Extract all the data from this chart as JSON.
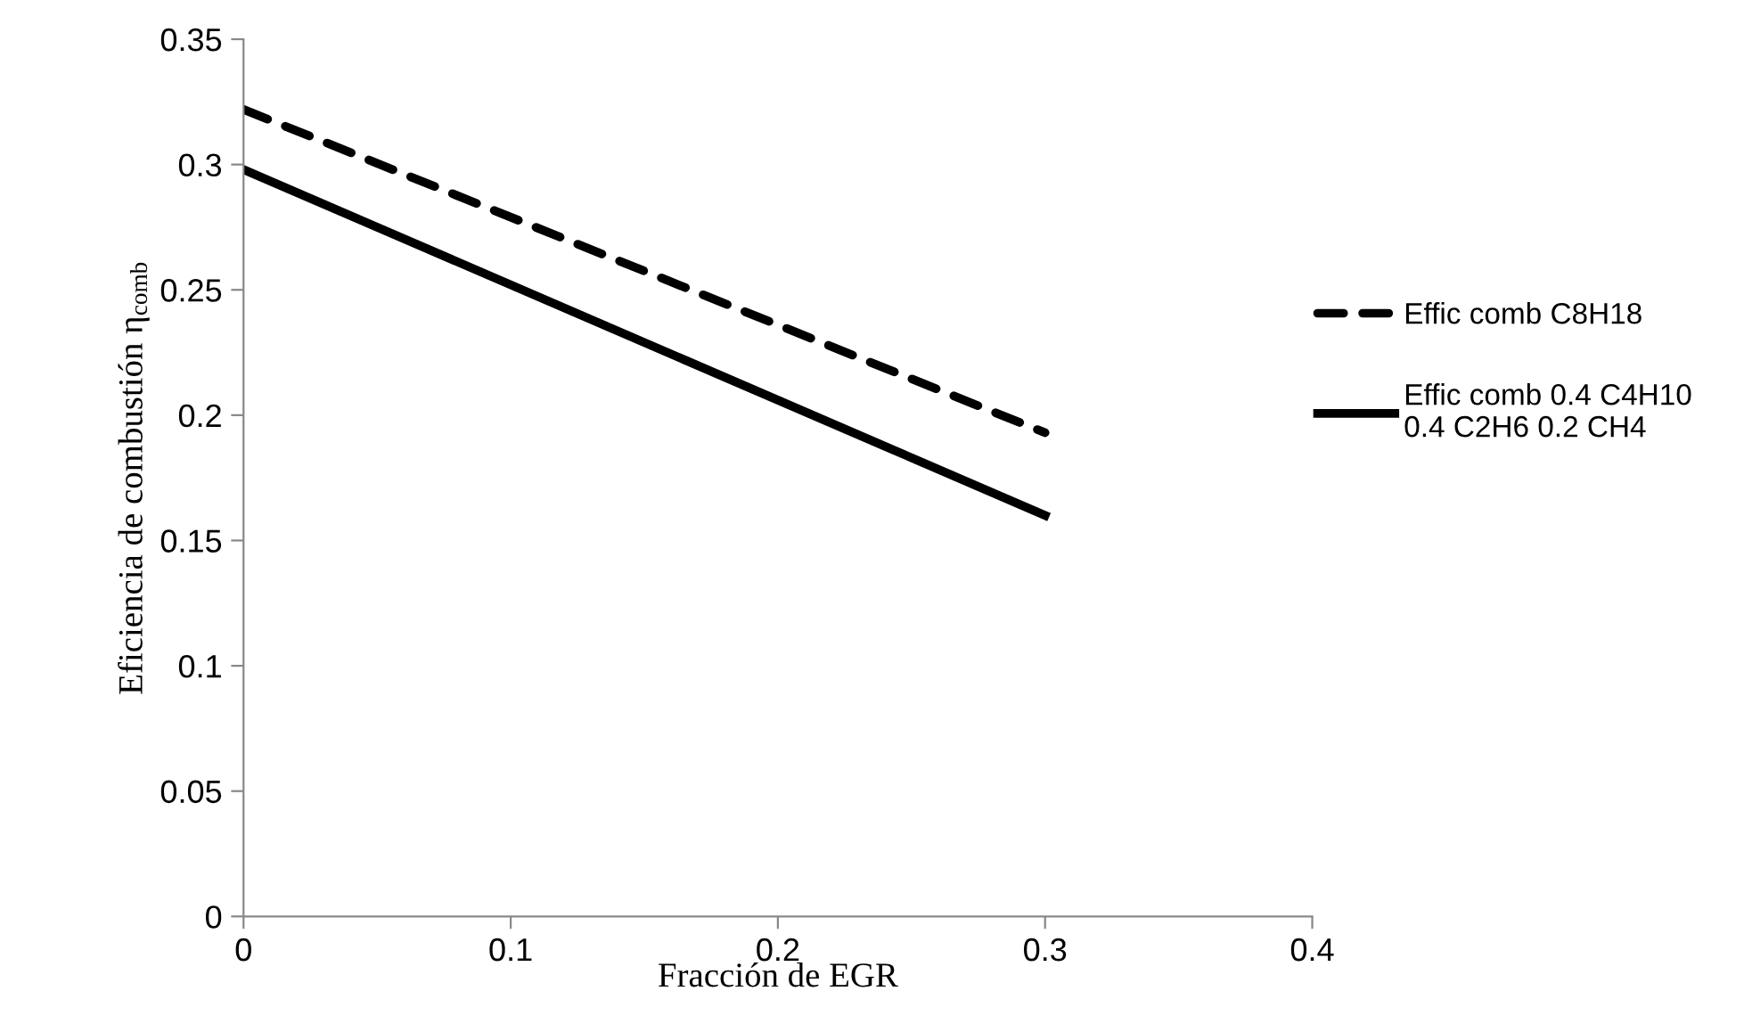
{
  "chart_data": {
    "type": "line",
    "xlabel": "Fracción de EGR",
    "ylabel": "Eficiencia de combustión η$_{comb}$",
    "x": [
      0,
      0.3
    ],
    "series": [
      {
        "name": "Effic comb C8H18",
        "color": "#000000",
        "line_style": "dashed",
        "values": [
          0.322,
          0.193
        ]
      },
      {
        "name": "Effic comb 0.4 C4H10\n0.4 C2H6 0.2 CH4",
        "color": "#000000",
        "line_style": "solid",
        "values": [
          0.298,
          0.16
        ]
      }
    ],
    "xlim": [
      0,
      0.4
    ],
    "xticks": [
      0,
      0.1,
      0.2,
      0.3,
      0.4
    ],
    "ylim": [
      0,
      0.35
    ],
    "yticks": [
      0,
      0.05,
      0.1,
      0.15,
      0.2,
      0.25,
      0.3,
      0.35
    ],
    "grid": false,
    "legend": "right",
    "marker": "none"
  }
}
